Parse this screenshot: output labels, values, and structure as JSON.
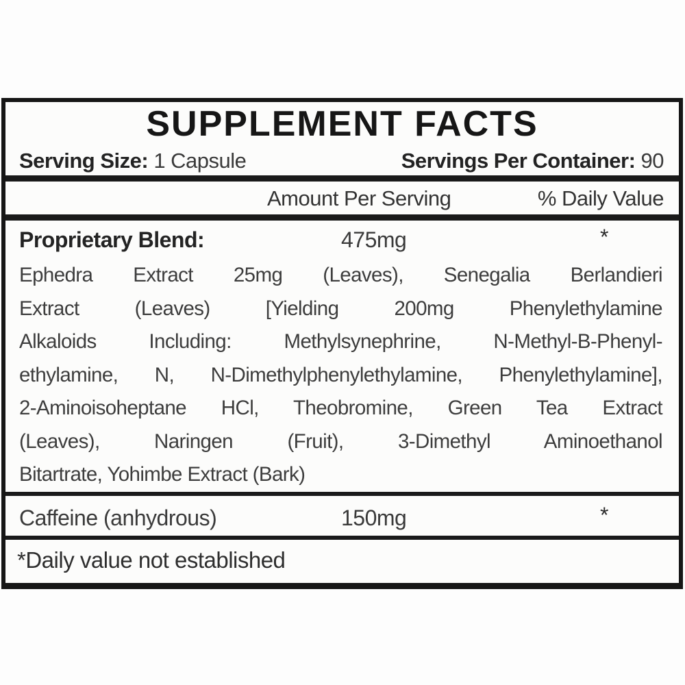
{
  "label": {
    "title": "SUPPLEMENT FACTS",
    "serving_size": {
      "label": "Serving Size:",
      "value": "1 Capsule"
    },
    "servings_per_container": {
      "label": "Servings Per Container:",
      "value": "90"
    },
    "columns": {
      "amount": "Amount Per Serving",
      "daily_value": "% Daily Value"
    },
    "proprietary_blend": {
      "name": "Proprietary Blend:",
      "amount": "475mg",
      "daily_value": "*",
      "details": [
        "Ephedra Extract 25mg (Leaves), Senegalia Berlandieri",
        "Extract (Leaves) [Yielding 200mg Phenylethylamine",
        "Alkaloids Including: Methylsynephrine, N-Methyl-B-Phenyl-",
        "ethylamine, N, N-Dimethylphenylethylamine, Phenylethylamine],",
        "2-Aminoisoheptane HCl, Theobromine, Green Tea Extract",
        "(Leaves), Naringen (Fruit), 3-Dimethyl Aminoethanol",
        "Bitartrate, Yohimbe Extract (Bark)"
      ]
    },
    "caffeine": {
      "name": "Caffeine (anhydrous)",
      "amount": "150mg",
      "daily_value": "*"
    },
    "footnote": "*Daily value not established",
    "colors": {
      "border": "#161616",
      "text": "#3a3a3a",
      "background": "#fcfcfb"
    }
  }
}
